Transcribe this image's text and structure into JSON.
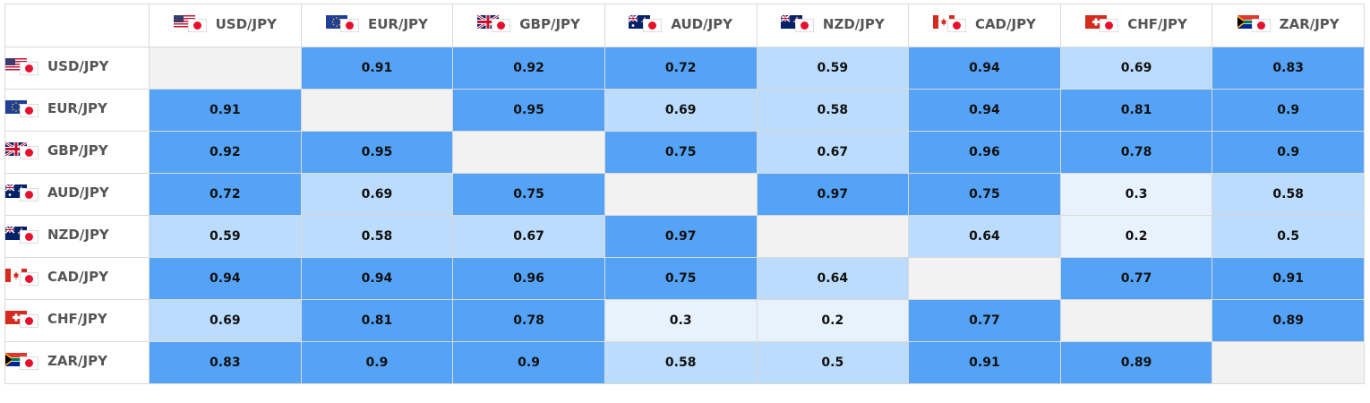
{
  "colors": {
    "strong": "#55a3f7",
    "medium": "#bbdcfc",
    "weak": "#e8f2fd",
    "diagonal": "#f2f2f2",
    "header_text": "#555555"
  },
  "pairs": [
    {
      "label": "USD/JPY",
      "flag": "us-flag-icon"
    },
    {
      "label": "EUR/JPY",
      "flag": "eu-flag-icon"
    },
    {
      "label": "GBP/JPY",
      "flag": "gb-flag-icon"
    },
    {
      "label": "AUD/JPY",
      "flag": "au-flag-icon"
    },
    {
      "label": "NZD/JPY",
      "flag": "nz-flag-icon"
    },
    {
      "label": "CAD/JPY",
      "flag": "ca-flag-icon"
    },
    {
      "label": "CHF/JPY",
      "flag": "ch-flag-icon"
    },
    {
      "label": "ZAR/JPY",
      "flag": "za-flag-icon"
    }
  ],
  "matrix": [
    [
      "",
      "0.91",
      "0.92",
      "0.72",
      "0.59",
      "0.94",
      "0.69",
      "0.83"
    ],
    [
      "0.91",
      "",
      "0.95",
      "0.69",
      "0.58",
      "0.94",
      "0.81",
      "0.9"
    ],
    [
      "0.92",
      "0.95",
      "",
      "0.75",
      "0.67",
      "0.96",
      "0.78",
      "0.9"
    ],
    [
      "0.72",
      "0.69",
      "0.75",
      "",
      "0.97",
      "0.75",
      "0.3",
      "0.58"
    ],
    [
      "0.59",
      "0.58",
      "0.67",
      "0.97",
      "",
      "0.64",
      "0.2",
      "0.5"
    ],
    [
      "0.94",
      "0.94",
      "0.96",
      "0.75",
      "0.64",
      "",
      "0.77",
      "0.91"
    ],
    [
      "0.69",
      "0.81",
      "0.78",
      "0.3",
      "0.2",
      "0.77",
      "",
      "0.89"
    ],
    [
      "0.83",
      "0.9",
      "0.9",
      "0.58",
      "0.5",
      "0.91",
      "0.89",
      ""
    ]
  ]
}
